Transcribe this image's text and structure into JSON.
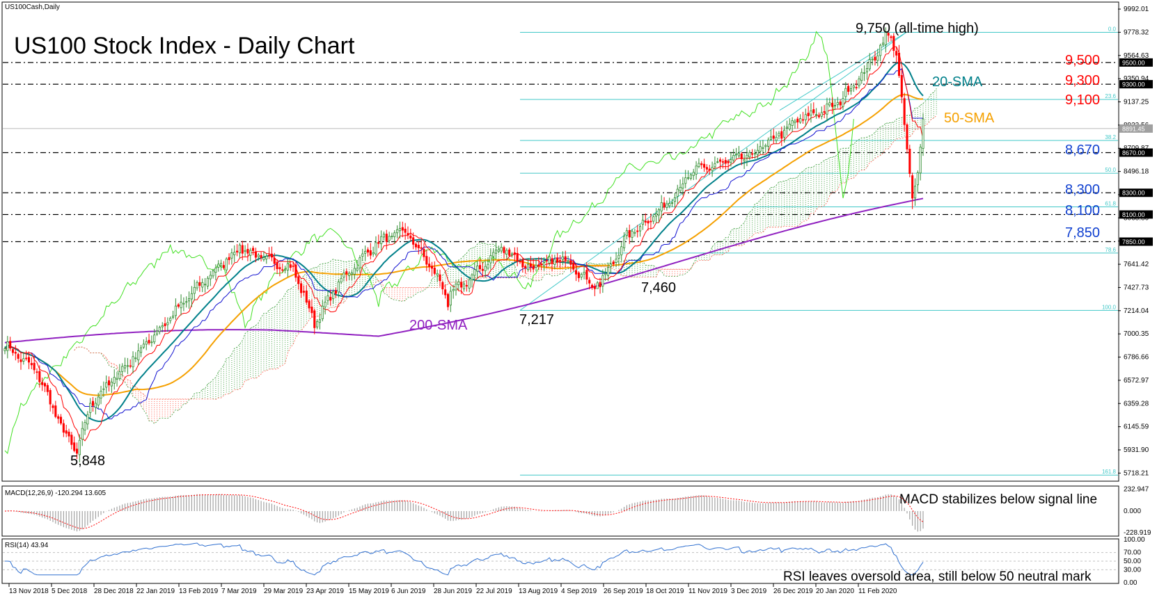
{
  "symbol_label": "US100Cash,Daily",
  "title": "US100 Stock Index - Daily Chart",
  "colors": {
    "up": "#2e8b2e",
    "down": "#ff0000",
    "fib": "#40c8c8",
    "sma20": "#00808a",
    "sma50": "#f5a000",
    "sma200": "#9020c0",
    "tenkan": "#ff0000",
    "kijun": "#1010d0",
    "chikou": "#40e020",
    "cloud_up": "#40a040",
    "cloud_down": "#ff6050",
    "level_red": "#ff0000",
    "level_blue": "#1040d0"
  },
  "chart_data": [
    {
      "type": "candlestick",
      "title": "US100 Stock Index - Daily Chart",
      "ylim": [
        5650,
        10050
      ],
      "y_ticks": [
        "9992.01",
        "9778.32",
        "9564.63",
        "9350.94",
        "9137.25",
        "8923.56",
        "8709.87",
        "8496.18",
        "8282.49",
        "8068.80",
        "7855.11",
        "7641.42",
        "7427.73",
        "7214.04",
        "7000.35",
        "6786.66",
        "6572.97",
        "6359.28",
        "6145.59",
        "5931.90",
        "5718.21"
      ],
      "x_ticks": [
        "13 Nov 2018",
        "5 Dec 2018",
        "28 Dec 2018",
        "22 Jan 2019",
        "13 Feb 2019",
        "7 Mar 2019",
        "29 Mar 2019",
        "23 Apr 2019",
        "15 May 2019",
        "6 Jun 2019",
        "28 Jun 2019",
        "22 Jul 2019",
        "13 Aug 2019",
        "4 Sep 2019",
        "26 Sep 2019",
        "18 Oct 2019",
        "11 Nov 2019",
        "3 Dec 2019",
        "26 Dec 2019",
        "20 Jan 2020",
        "11 Feb 2020"
      ],
      "close_anchors": [
        [
          0,
          6900
        ],
        [
          12,
          6650
        ],
        [
          22,
          6100
        ],
        [
          27,
          5900
        ],
        [
          32,
          6350
        ],
        [
          45,
          6700
        ],
        [
          60,
          7100
        ],
        [
          75,
          7500
        ],
        [
          88,
          7800
        ],
        [
          96,
          7700
        ],
        [
          108,
          7600
        ],
        [
          116,
          7100
        ],
        [
          126,
          7500
        ],
        [
          140,
          7850
        ],
        [
          150,
          7950
        ],
        [
          160,
          7600
        ],
        [
          166,
          7350
        ],
        [
          176,
          7550
        ],
        [
          186,
          7800
        ],
        [
          197,
          7600
        ],
        [
          210,
          7700
        ],
        [
          222,
          7400
        ],
        [
          233,
          7900
        ],
        [
          246,
          8150
        ],
        [
          258,
          8500
        ],
        [
          280,
          8650
        ],
        [
          298,
          8980
        ],
        [
          311,
          9100
        ],
        [
          318,
          9300
        ],
        [
          323,
          9440
        ],
        [
          331,
          9780
        ],
        [
          334,
          9600
        ],
        [
          337,
          8900
        ],
        [
          340,
          8250
        ],
        [
          342,
          8480
        ],
        [
          344,
          8980
        ]
      ],
      "candle_count": 345,
      "current_price": "8891.45",
      "indicators": [
        "20-SMA",
        "50-SMA",
        "200-SMA",
        "Ichimoku cloud"
      ],
      "fibonacci": [
        {
          "label": "0.0",
          "value": 9778
        },
        {
          "label": "23.6",
          "value": 9160
        },
        {
          "label": "38.2",
          "value": 8782
        },
        {
          "label": "50.0",
          "value": 8480
        },
        {
          "label": "61.8",
          "value": 8170
        },
        {
          "label": "78.6",
          "value": 7745
        },
        {
          "label": "100.0",
          "value": 7217
        },
        {
          "label": "161.8",
          "value": 5700
        }
      ],
      "dashed_levels": [
        {
          "value": 9500,
          "label": "9,500",
          "axis_label": "9500.00",
          "color": "red"
        },
        {
          "value": 9300,
          "label": "9,300",
          "axis_label": "9300.00",
          "color": "red"
        },
        {
          "value": 8670,
          "label": "8,670",
          "axis_label": "8670.00",
          "color": "blue"
        },
        {
          "value": 8300,
          "label": "8,300",
          "axis_label": "8300.00",
          "color": "blue"
        },
        {
          "value": 8100,
          "label": "8,100",
          "axis_label": "8100.00",
          "color": "blue"
        },
        {
          "value": 7850,
          "label": "7,850",
          "axis_label": "7850.00",
          "color": "blue"
        }
      ],
      "level_9100": {
        "value": 9100,
        "label": "9,100"
      },
      "annotations": [
        {
          "text": "9,750 (all-time high)"
        },
        {
          "text": "5,848"
        },
        {
          "text": "7,217"
        },
        {
          "text": "7,460"
        },
        {
          "text": "200-SMA"
        },
        {
          "text": "20-SMA"
        },
        {
          "text": "50-SMA"
        }
      ]
    },
    {
      "type": "line",
      "name": "MACD(12,26,9) -120.294 13.605",
      "ylim": [
        -260,
        260
      ],
      "y_ticks": [
        "232.947",
        "0.000",
        "-228.919"
      ],
      "annotation": "MACD stabilizes below signal line"
    },
    {
      "type": "line",
      "name": "RSI(14) 43.94",
      "ylim": [
        0,
        100
      ],
      "y_ticks": [
        "100.00",
        "70.00",
        "50.00",
        "30.00",
        "0.00"
      ],
      "annotation": "RSI leaves oversold area, still below 50 neutral mark"
    }
  ]
}
